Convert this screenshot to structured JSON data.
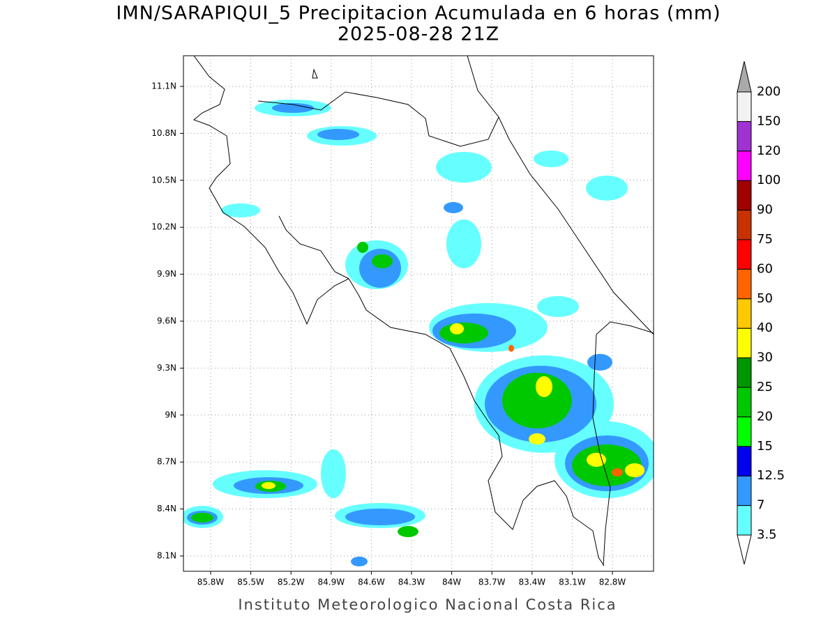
{
  "title": "IMN/SARAPIQUI_5 Precipitacion Acumulada en 6 horas (mm)",
  "subtitle": "2025-08-28 21Z",
  "map": {
    "lat_labels": [
      "11.1N",
      "10.8N",
      "10.5N",
      "10.2N",
      "9.9N",
      "9.6N",
      "9.3N",
      "9N",
      "8.7N",
      "8.4N",
      "8.1N"
    ],
    "lon_labels": [
      "85.8W",
      "85.5W",
      "85.2W",
      "84.9W",
      "84.6W",
      "84.3W",
      "84W",
      "83.7W",
      "83.4W",
      "83.1W",
      "82.8W"
    ],
    "grid": true
  },
  "colorbar": {
    "levels": [
      3.5,
      7,
      12.5,
      15,
      20,
      25,
      30,
      40,
      50,
      60,
      75,
      90,
      100,
      120,
      150,
      200
    ],
    "colors": [
      "#66ffff",
      "#3399ff",
      "#0000ee",
      "#00ff00",
      "#00c800",
      "#009600",
      "#ffff00",
      "#ffc800",
      "#ff6400",
      "#ff0000",
      "#c83200",
      "#a00000",
      "#ff00ff",
      "#a032d2",
      "#f2f2f2"
    ],
    "under_color": "#ffffff",
    "over_color": "#aaaaaa"
  },
  "footer": "Instituto Meteorologico Nacional Costa Rica"
}
